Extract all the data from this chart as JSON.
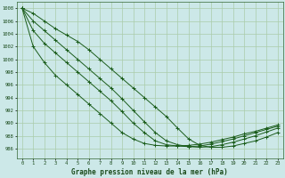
{
  "title": "Graphe pression niveau de la mer (hPa)",
  "background_color": "#cce8e8",
  "grid_color": "#aaccaa",
  "line_color": "#1a5c1a",
  "xlim": [
    -0.5,
    23.5
  ],
  "ylim": [
    984.5,
    1009.0
  ],
  "yticks": [
    986,
    988,
    990,
    992,
    994,
    996,
    998,
    1000,
    1002,
    1004,
    1006,
    1008
  ],
  "xticks": [
    0,
    1,
    2,
    3,
    4,
    5,
    6,
    7,
    8,
    9,
    10,
    11,
    12,
    13,
    14,
    15,
    16,
    17,
    18,
    19,
    20,
    21,
    22,
    23
  ],
  "series": [
    [
      1008,
      1007.2,
      1006.0,
      1004.8,
      1003.8,
      1002.8,
      1001.5,
      1000.0,
      998.5,
      997.0,
      995.5,
      994.0,
      992.5,
      991.0,
      989.2,
      987.5,
      986.5,
      986.2,
      986.2,
      986.4,
      986.8,
      987.2,
      987.8,
      988.5
    ],
    [
      1008,
      1006.0,
      1004.5,
      1003.0,
      1001.5,
      1000.0,
      998.5,
      997.0,
      995.5,
      993.8,
      992.0,
      990.2,
      988.5,
      987.2,
      986.6,
      986.3,
      986.2,
      986.3,
      986.6,
      987.0,
      987.5,
      988.0,
      988.6,
      989.2
    ],
    [
      1008,
      1004.5,
      1002.5,
      1001.0,
      999.5,
      998.0,
      996.5,
      995.0,
      993.5,
      991.8,
      990.0,
      988.5,
      987.2,
      986.6,
      986.4,
      986.3,
      986.4,
      986.7,
      987.1,
      987.5,
      988.0,
      988.5,
      989.0,
      989.5
    ],
    [
      1008,
      1002.0,
      999.5,
      997.5,
      996.0,
      994.5,
      993.0,
      991.5,
      990.0,
      988.5,
      987.5,
      986.8,
      986.5,
      986.4,
      986.4,
      986.5,
      986.7,
      987.0,
      987.4,
      987.8,
      988.3,
      988.7,
      989.2,
      989.7
    ]
  ]
}
